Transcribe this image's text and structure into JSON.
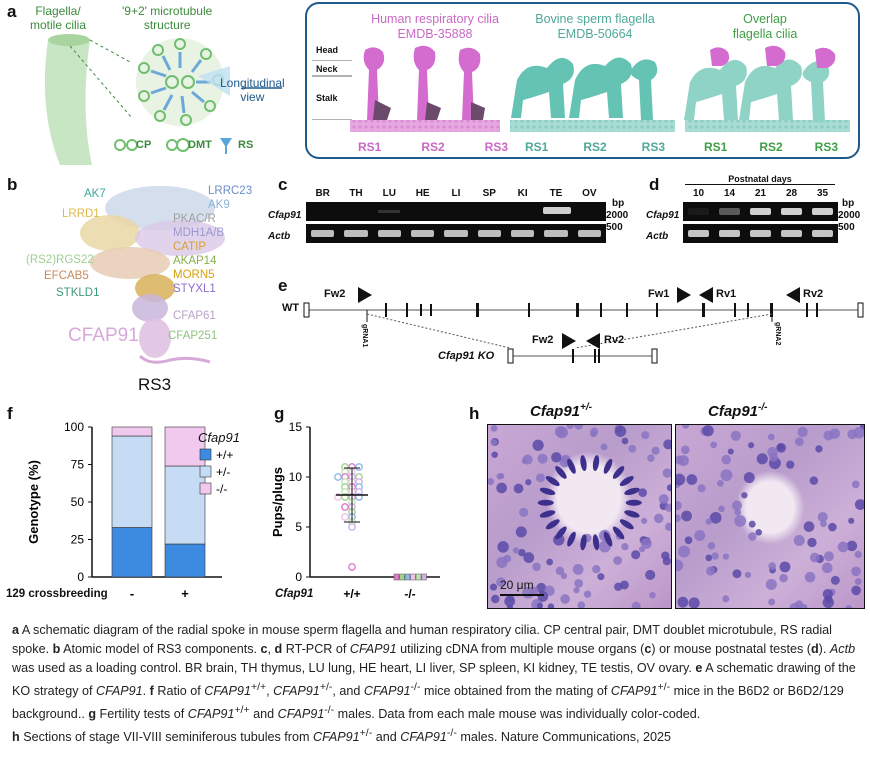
{
  "panel_letters": {
    "a": "a",
    "b": "b",
    "c": "c",
    "d": "d",
    "e": "e",
    "f": "f",
    "g": "g",
    "h": "h"
  },
  "panel_a": {
    "flagella_label": "Flagella/\nmotile cilia",
    "microtubule_label": "'9+2' microtubule\nstructure",
    "longitudinal_label": "Longitudinal\nview",
    "legend": {
      "cp": "CP",
      "dmt": "DMT",
      "rs": "RS"
    },
    "maps": [
      {
        "title": "Human respiratory cilia",
        "subtitle": "EMDB-35888",
        "color": "#c969c3"
      },
      {
        "title": "Bovine sperm flagella",
        "subtitle": "EMDB-50664",
        "color": "#5bb5a6"
      },
      {
        "title": "Overlap",
        "subtitle": "flagella cilia",
        "color": "#4caf50"
      }
    ],
    "regions": [
      "Head",
      "Neck",
      "Stalk"
    ],
    "rs_labels": [
      "RS1",
      "RS2",
      "RS3"
    ]
  },
  "panel_b": {
    "components": [
      {
        "name": "AK7",
        "color": "#3aa99f"
      },
      {
        "name": "LRRC23",
        "color": "#6b8fc7"
      },
      {
        "name": "AK9",
        "color": "#8ab4d8"
      },
      {
        "name": "LRRD1",
        "color": "#e0b84a"
      },
      {
        "name": "PKAC/R",
        "color": "#a0a0a0"
      },
      {
        "name": "MDH1A/B",
        "color": "#9a9ad0"
      },
      {
        "name": "CATIP",
        "color": "#d4a033"
      },
      {
        "name": "AKAP14",
        "color": "#86b04a"
      },
      {
        "name": "(RS2)RGS22",
        "color": "#9ccf8f"
      },
      {
        "name": "MORN5",
        "color": "#d6a10a"
      },
      {
        "name": "EFCAB5",
        "color": "#c9885a"
      },
      {
        "name": "STYXL1",
        "color": "#8a6fd0"
      },
      {
        "name": "STKLD1",
        "color": "#3c9a7a"
      },
      {
        "name": "CFAP61",
        "color": "#b9a3c8"
      },
      {
        "name": "CFAP91",
        "color": "#d7a9d9"
      },
      {
        "name": "CFAP251",
        "color": "#8fc47f"
      }
    ],
    "title": "RS3"
  },
  "panel_c": {
    "lanes": [
      "BR",
      "TH",
      "LU",
      "HE",
      "LI",
      "SP",
      "KI",
      "TE",
      "OV"
    ],
    "rows": [
      "Cfap91",
      "Actb"
    ],
    "bp_label": "bp",
    "markers": [
      "2000",
      "500"
    ]
  },
  "panel_d": {
    "header": "Postnatal days",
    "lanes": [
      "10",
      "14",
      "21",
      "28",
      "35"
    ],
    "rows": [
      "Cfap91",
      "Actb"
    ],
    "bp_label": "bp",
    "markers": [
      "2000",
      "500"
    ]
  },
  "panel_e": {
    "wt_label": "WT",
    "ko_label": "Cfap91 KO",
    "primers_wt": [
      "Fw2",
      "Fw1",
      "Rv1",
      "Rv2"
    ],
    "primers_ko": [
      "Fw2",
      "Rv2"
    ],
    "grna": [
      "gRNA1",
      "gRNA2"
    ]
  },
  "panel_f": {
    "legend_title": "Cfap91",
    "ylabel": "Genotype (%)",
    "xlabel_prefix": "129 crossbreeding",
    "yticks": [
      "0",
      "25",
      "50",
      "75",
      "100"
    ],
    "categories": [
      "-",
      "+"
    ],
    "series": [
      {
        "name": "+/+",
        "color": "#3d8be0",
        "values": [
          33,
          22
        ]
      },
      {
        "name": "+/-",
        "color": "#c6dcf5",
        "values": [
          61,
          52
        ]
      },
      {
        "name": "-/-",
        "color": "#f2c9ee",
        "values": [
          6,
          26
        ]
      }
    ]
  },
  "chart_data": [
    {
      "type": "bar",
      "categories": [
        "-",
        "+"
      ],
      "series": [
        {
          "name": "+/+",
          "values": [
            33,
            22
          ]
        },
        {
          "name": "+/-",
          "values": [
            61,
            52
          ]
        },
        {
          "name": "-/-",
          "values": [
            6,
            26
          ]
        }
      ],
      "xlabel": "129 crossbreeding",
      "ylabel": "Genotype (%)",
      "ylim": [
        0,
        100
      ]
    },
    {
      "type": "scatter",
      "categories": [
        "+/+",
        "-/-"
      ],
      "points_wt": [
        11,
        11,
        11,
        10.5,
        10.5,
        10,
        10,
        10,
        10,
        9.5,
        9.5,
        9.5,
        9,
        9,
        9,
        8.5,
        8.5,
        8.5,
        8,
        8,
        8,
        8,
        7.5,
        7,
        7,
        6.5,
        6,
        6,
        5.5,
        5,
        1
      ],
      "points_ko": [
        0,
        0,
        0,
        0,
        0,
        0
      ],
      "mean_wt": 8.2,
      "sd_wt": [
        5.5,
        10.9
      ],
      "xlabel": "Cfap91",
      "ylabel": "Pups/plugs",
      "ylim": [
        0,
        15
      ]
    }
  ],
  "panel_g": {
    "ylabel": "Pups/plugs",
    "xlabel": "Cfap91",
    "yticks": [
      "0",
      "5",
      "10",
      "15"
    ],
    "categories": [
      "+/+",
      "-/-"
    ]
  },
  "panel_h": {
    "left_title": "Cfap91",
    "left_sup": "+/-",
    "right_title": "Cfap91",
    "right_sup": "-/-",
    "scale_bar": "20 μm"
  },
  "caption": {
    "p1": "A schematic diagram of the radial spoke in mouse sperm flagella and human respiratory cilia. CP central pair, DMT doublet microtubule, RS radial spoke. ",
    "p2": "Atomic model of RS3 components. ",
    "p3": "RT-PCR of ",
    "p4": " utilizing cDNA from multiple mouse organs (",
    "p5": ") or mouse postnatal testes (",
    "p6": "). ",
    "p7": " was used as a loading control. BR brain, TH thymus, LU lung, HE heart, LI liver, SP spleen, KI kidney, TE testis, OV ovary. ",
    "p8": "A schematic drawing of the KO strategy of ",
    "p9": "Ratio of ",
    "p10": " mice obtained from the mating of ",
    "p11": " mice in the B6D2 or B6D2/129 background.. ",
    "p12": "Fertility tests of ",
    "p13": " males. Data from each male mouse was individually color-coded. ",
    "p14": "Sections of stage VII-VIII seminiferous tubules from ",
    "p15": " males. Nature Communications, 2025"
  }
}
